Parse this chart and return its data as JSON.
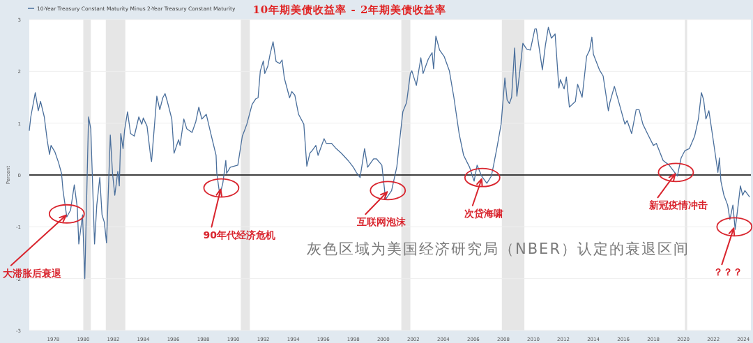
{
  "chart_data": {
    "type": "line",
    "title": "10年期美债收益率 - 2年期美债收益率",
    "ylabel": "Percent",
    "x": [
      1976.4,
      1976.5,
      1976.8,
      1977.0,
      1977.15,
      1977.4,
      1977.6,
      1977.75,
      1977.85,
      1978.1,
      1978.35,
      1978.55,
      1978.65,
      1978.9,
      1979.15,
      1979.4,
      1979.6,
      1979.7,
      1979.95,
      1980.1,
      1980.35,
      1980.5,
      1980.75,
      1980.9,
      1981.1,
      1981.25,
      1981.4,
      1981.55,
      1981.8,
      1981.95,
      1982.1,
      1982.3,
      1982.4,
      1982.5,
      1982.65,
      1982.75,
      1982.95,
      1983.15,
      1983.4,
      1983.7,
      1983.9,
      1984.0,
      1984.25,
      1984.5,
      1984.55,
      1984.9,
      1985.1,
      1985.3,
      1985.45,
      1985.6,
      1985.9,
      1986.05,
      1986.35,
      1986.45,
      1986.7,
      1986.9,
      1987.15,
      1987.25,
      1987.5,
      1987.7,
      1987.9,
      1988.2,
      1988.5,
      1988.85,
      1988.9,
      1989.1,
      1989.3,
      1989.5,
      1989.55,
      1989.8,
      1990.05,
      1990.3,
      1990.6,
      1990.75,
      1990.9,
      1991.25,
      1991.5,
      1991.65,
      1991.8,
      1992.0,
      1992.1,
      1992.3,
      1992.45,
      1992.65,
      1992.85,
      1993.1,
      1993.25,
      1993.4,
      1993.75,
      1993.9,
      1994.1,
      1994.35,
      1994.7,
      1994.9,
      1995.1,
      1995.25,
      1995.5,
      1995.65,
      1996.05,
      1996.2,
      1996.55,
      1996.85,
      1997.2,
      1997.65,
      1998.0,
      1998.2,
      1998.45,
      1998.75,
      1998.95,
      1999.35,
      1999.55,
      1999.9,
      2000.15,
      2000.55,
      2000.9,
      2001.05,
      2001.3,
      2001.55,
      2001.8,
      2001.9,
      2002.2,
      2002.5,
      2002.65,
      2003.0,
      2003.25,
      2003.35,
      2003.5,
      2003.75,
      2004.05,
      2004.4,
      2004.7,
      2005.05,
      2005.35,
      2005.75,
      2006.05,
      2006.25,
      2006.55,
      2006.9,
      2007.2,
      2007.35,
      2007.6,
      2007.85,
      2008.1,
      2008.25,
      2008.4,
      2008.55,
      2008.75,
      2008.9,
      2009.1,
      2009.3,
      2009.55,
      2009.8,
      2010.1,
      2010.2,
      2010.6,
      2010.8,
      2011.0,
      2011.2,
      2011.45,
      2011.7,
      2011.8,
      2012.05,
      2012.2,
      2012.4,
      2012.8,
      2012.95,
      2013.25,
      2013.55,
      2013.75,
      2013.9,
      2014.0,
      2014.4,
      2014.65,
      2015.0,
      2015.1,
      2015.4,
      2015.7,
      2016.1,
      2016.25,
      2016.55,
      2016.85,
      2017.05,
      2017.3,
      2017.6,
      2018.0,
      2018.2,
      2018.65,
      2019.05,
      2019.6,
      2019.85,
      2020.1,
      2020.4,
      2020.75,
      2021.0,
      2021.2,
      2021.35,
      2021.5,
      2021.7,
      2021.95,
      2022.3,
      2022.4,
      2022.5,
      2022.7,
      2022.95,
      2023.1,
      2023.3,
      2023.45,
      2023.65,
      2023.8,
      2023.95,
      2024.1,
      2024.4
    ],
    "series": [
      {
        "name": "10-Year Treasury Constant Maturity Minus 2-Year Treasury Constant Maturity",
        "color": "#4a6f9c",
        "values": [
          0.86,
          1.12,
          1.59,
          1.24,
          1.42,
          1.12,
          0.66,
          0.4,
          0.57,
          0.45,
          0.24,
          0.03,
          -0.3,
          -0.81,
          -0.68,
          -0.19,
          -0.63,
          -1.33,
          -0.77,
          -2.0,
          1.12,
          0.89,
          -1.33,
          -0.58,
          -0.05,
          -0.77,
          -0.91,
          -1.31,
          0.77,
          0.03,
          -0.39,
          0.07,
          -0.21,
          0.8,
          0.51,
          0.86,
          1.22,
          0.8,
          0.75,
          1.12,
          0.98,
          1.1,
          0.94,
          0.33,
          0.26,
          1.52,
          1.26,
          1.49,
          1.57,
          1.42,
          1.08,
          0.42,
          0.68,
          0.57,
          1.08,
          0.89,
          0.84,
          0.82,
          1.03,
          1.31,
          1.08,
          1.17,
          0.8,
          0.38,
          0.03,
          -0.39,
          -0.16,
          0.28,
          0.03,
          0.15,
          0.17,
          0.19,
          0.75,
          0.86,
          0.98,
          1.36,
          1.47,
          1.49,
          2.01,
          2.2,
          1.96,
          2.1,
          2.33,
          2.57,
          2.19,
          2.15,
          2.22,
          1.87,
          1.49,
          1.61,
          1.54,
          1.17,
          0.98,
          0.17,
          0.42,
          0.47,
          0.57,
          0.38,
          0.7,
          0.61,
          0.61,
          0.51,
          0.42,
          0.28,
          0.15,
          0.05,
          -0.05,
          0.51,
          0.15,
          0.31,
          0.31,
          0.19,
          -0.47,
          -0.3,
          0.16,
          0.57,
          1.22,
          1.4,
          1.96,
          2.01,
          1.73,
          2.26,
          1.96,
          2.24,
          2.36,
          2.05,
          2.68,
          2.41,
          2.29,
          2.01,
          1.5,
          0.8,
          0.38,
          0.15,
          -0.12,
          0.19,
          -0.02,
          -0.16,
          -0.02,
          0.19,
          0.57,
          0.98,
          1.87,
          1.45,
          1.38,
          1.5,
          2.45,
          1.52,
          2.01,
          2.54,
          2.43,
          2.41,
          2.82,
          2.82,
          2.03,
          2.5,
          2.85,
          2.64,
          2.72,
          1.68,
          1.84,
          1.66,
          1.89,
          1.31,
          1.42,
          1.75,
          1.5,
          2.29,
          2.41,
          2.66,
          2.33,
          2.03,
          1.91,
          1.24,
          1.4,
          1.71,
          1.4,
          0.98,
          1.05,
          0.8,
          1.26,
          1.26,
          0.98,
          0.8,
          0.57,
          0.61,
          0.28,
          0.19,
          -0.02,
          0.33,
          0.47,
          0.51,
          0.75,
          1.08,
          1.59,
          1.45,
          1.08,
          1.24,
          0.75,
          0.05,
          0.33,
          -0.12,
          -0.39,
          -0.58,
          -0.86,
          -0.58,
          -1.05,
          -0.58,
          -0.21,
          -0.39,
          -0.3,
          -0.42
        ]
      }
    ],
    "xlim": [
      1976.4,
      2024.5
    ],
    "ylim": [
      -3,
      3
    ],
    "xticks": [
      1978,
      1980,
      1982,
      1984,
      1986,
      1988,
      1990,
      1992,
      1994,
      1996,
      1998,
      2000,
      2002,
      2004,
      2006,
      2008,
      2010,
      2012,
      2014,
      2016,
      2018,
      2020,
      2022,
      2024
    ],
    "yticks": [
      -3,
      -2,
      -1,
      0,
      1,
      2,
      3
    ],
    "grid": "y",
    "legend": "top left",
    "ref_lines": [
      {
        "axis": "y",
        "value": 0,
        "color": "#000000"
      }
    ],
    "bands": [
      {
        "axis": "x",
        "from": 1980.0,
        "to": 1980.5,
        "color": "#e6e6e6"
      },
      {
        "axis": "x",
        "from": 1981.5,
        "to": 1982.8,
        "color": "#e6e6e6"
      },
      {
        "axis": "x",
        "from": 1990.5,
        "to": 1991.1,
        "color": "#e6e6e6"
      },
      {
        "axis": "x",
        "from": 2001.2,
        "to": 2001.8,
        "color": "#e6e6e6"
      },
      {
        "axis": "x",
        "from": 2007.9,
        "to": 2009.4,
        "color": "#e6e6e6"
      },
      {
        "axis": "x",
        "from": 2020.1,
        "to": 2020.25,
        "color": "#e6e6e6"
      }
    ],
    "annotations": [
      {
        "text": "大滞胀后衰退",
        "x": 1978.9,
        "y": -0.75
      },
      {
        "text": "90年代经济危机",
        "x": 1989.2,
        "y": -0.25
      },
      {
        "text": "互联网泡沫",
        "x": 2000.3,
        "y": -0.3
      },
      {
        "text": "次贷海啸",
        "x": 2006.6,
        "y": -0.05
      },
      {
        "text": "新冠疫情冲击",
        "x": 2019.5,
        "y": 0.05
      },
      {
        "text": "？？？",
        "x": 2023.4,
        "y": -1.0
      },
      "灰色区域为美国经济研究局（NBER）认定的衰退区间"
    ]
  }
}
